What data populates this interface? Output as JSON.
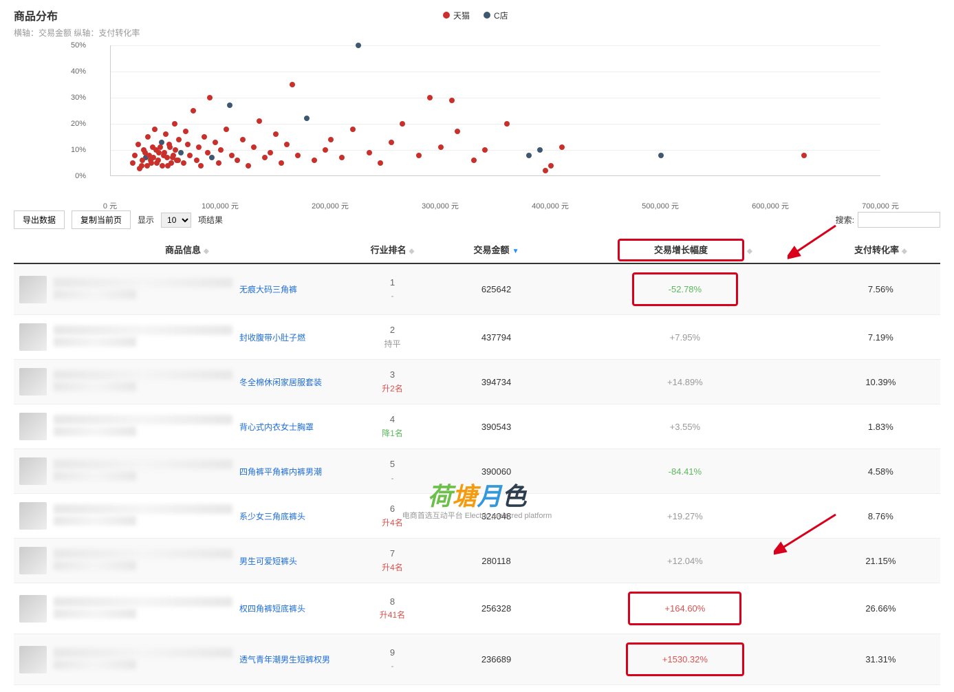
{
  "chart": {
    "title": "商品分布",
    "axis_desc": "横轴：交易金额 纵轴：支付转化率",
    "legend": [
      {
        "label": "天猫",
        "color": "#c9302c"
      },
      {
        "label": "C店",
        "color": "#3e5871"
      }
    ],
    "colors": {
      "tmall": "#c9302c",
      "cstore": "#3e5871",
      "grid": "#eeeeee",
      "axis": "#cccccc"
    },
    "xlim": [
      0,
      700000
    ],
    "ylim": [
      0,
      50
    ],
    "x_ticks": [
      "0 元",
      "100,000 元",
      "200,000 元",
      "300,000 元",
      "400,000 元",
      "500,000 元",
      "600,000 元",
      "700,000 元"
    ],
    "y_ticks": [
      "0%",
      "10%",
      "20%",
      "30%",
      "40%",
      "50%"
    ],
    "points": [
      {
        "x": 20000,
        "y": 5,
        "s": "t"
      },
      {
        "x": 22000,
        "y": 8,
        "s": "t"
      },
      {
        "x": 25000,
        "y": 12,
        "s": "t"
      },
      {
        "x": 28000,
        "y": 4,
        "s": "t"
      },
      {
        "x": 30000,
        "y": 10,
        "s": "t"
      },
      {
        "x": 32000,
        "y": 7,
        "s": "c"
      },
      {
        "x": 34000,
        "y": 15,
        "s": "t"
      },
      {
        "x": 36000,
        "y": 6,
        "s": "t"
      },
      {
        "x": 38000,
        "y": 11,
        "s": "t"
      },
      {
        "x": 40000,
        "y": 18,
        "s": "t"
      },
      {
        "x": 42000,
        "y": 5,
        "s": "t"
      },
      {
        "x": 44000,
        "y": 9,
        "s": "t"
      },
      {
        "x": 46000,
        "y": 13,
        "s": "c"
      },
      {
        "x": 48000,
        "y": 8,
        "s": "t"
      },
      {
        "x": 50000,
        "y": 16,
        "s": "t"
      },
      {
        "x": 52000,
        "y": 4,
        "s": "t"
      },
      {
        "x": 54000,
        "y": 11,
        "s": "t"
      },
      {
        "x": 56000,
        "y": 7,
        "s": "t"
      },
      {
        "x": 58000,
        "y": 20,
        "s": "t"
      },
      {
        "x": 60000,
        "y": 6,
        "s": "t"
      },
      {
        "x": 62000,
        "y": 14,
        "s": "t"
      },
      {
        "x": 64000,
        "y": 9,
        "s": "c"
      },
      {
        "x": 66000,
        "y": 5,
        "s": "t"
      },
      {
        "x": 68000,
        "y": 17,
        "s": "t"
      },
      {
        "x": 70000,
        "y": 12,
        "s": "t"
      },
      {
        "x": 72000,
        "y": 8,
        "s": "t"
      },
      {
        "x": 75000,
        "y": 25,
        "s": "t"
      },
      {
        "x": 78000,
        "y": 6,
        "s": "t"
      },
      {
        "x": 80000,
        "y": 11,
        "s": "t"
      },
      {
        "x": 82000,
        "y": 4,
        "s": "t"
      },
      {
        "x": 85000,
        "y": 15,
        "s": "t"
      },
      {
        "x": 88000,
        "y": 9,
        "s": "t"
      },
      {
        "x": 90000,
        "y": 30,
        "s": "t"
      },
      {
        "x": 92000,
        "y": 7,
        "s": "c"
      },
      {
        "x": 95000,
        "y": 13,
        "s": "t"
      },
      {
        "x": 98000,
        "y": 5,
        "s": "t"
      },
      {
        "x": 100000,
        "y": 10,
        "s": "t"
      },
      {
        "x": 105000,
        "y": 18,
        "s": "t"
      },
      {
        "x": 108000,
        "y": 27,
        "s": "c"
      },
      {
        "x": 110000,
        "y": 8,
        "s": "t"
      },
      {
        "x": 115000,
        "y": 6,
        "s": "t"
      },
      {
        "x": 120000,
        "y": 14,
        "s": "t"
      },
      {
        "x": 125000,
        "y": 4,
        "s": "t"
      },
      {
        "x": 130000,
        "y": 11,
        "s": "t"
      },
      {
        "x": 135000,
        "y": 21,
        "s": "t"
      },
      {
        "x": 140000,
        "y": 7,
        "s": "t"
      },
      {
        "x": 145000,
        "y": 9,
        "s": "t"
      },
      {
        "x": 150000,
        "y": 16,
        "s": "t"
      },
      {
        "x": 155000,
        "y": 5,
        "s": "t"
      },
      {
        "x": 160000,
        "y": 12,
        "s": "t"
      },
      {
        "x": 165000,
        "y": 35,
        "s": "t"
      },
      {
        "x": 170000,
        "y": 8,
        "s": "t"
      },
      {
        "x": 178000,
        "y": 22,
        "s": "c"
      },
      {
        "x": 185000,
        "y": 6,
        "s": "t"
      },
      {
        "x": 195000,
        "y": 10,
        "s": "t"
      },
      {
        "x": 200000,
        "y": 14,
        "s": "t"
      },
      {
        "x": 210000,
        "y": 7,
        "s": "t"
      },
      {
        "x": 220000,
        "y": 18,
        "s": "t"
      },
      {
        "x": 225000,
        "y": 50,
        "s": "c"
      },
      {
        "x": 235000,
        "y": 9,
        "s": "t"
      },
      {
        "x": 245000,
        "y": 5,
        "s": "t"
      },
      {
        "x": 255000,
        "y": 13,
        "s": "t"
      },
      {
        "x": 265000,
        "y": 20,
        "s": "t"
      },
      {
        "x": 280000,
        "y": 8,
        "s": "t"
      },
      {
        "x": 290000,
        "y": 30,
        "s": "t"
      },
      {
        "x": 300000,
        "y": 11,
        "s": "t"
      },
      {
        "x": 310000,
        "y": 29,
        "s": "t"
      },
      {
        "x": 315000,
        "y": 17,
        "s": "t"
      },
      {
        "x": 330000,
        "y": 6,
        "s": "t"
      },
      {
        "x": 340000,
        "y": 10,
        "s": "t"
      },
      {
        "x": 360000,
        "y": 20,
        "s": "t"
      },
      {
        "x": 380000,
        "y": 8,
        "s": "c"
      },
      {
        "x": 390000,
        "y": 10,
        "s": "c"
      },
      {
        "x": 395000,
        "y": 2,
        "s": "t"
      },
      {
        "x": 400000,
        "y": 4,
        "s": "t"
      },
      {
        "x": 410000,
        "y": 11,
        "s": "t"
      },
      {
        "x": 500000,
        "y": 8,
        "s": "c"
      },
      {
        "x": 630000,
        "y": 8,
        "s": "t"
      },
      {
        "x": 26000,
        "y": 3,
        "s": "t"
      },
      {
        "x": 29000,
        "y": 6,
        "s": "t"
      },
      {
        "x": 31000,
        "y": 9,
        "s": "t"
      },
      {
        "x": 33000,
        "y": 4,
        "s": "t"
      },
      {
        "x": 35000,
        "y": 8,
        "s": "t"
      },
      {
        "x": 37000,
        "y": 5,
        "s": "t"
      },
      {
        "x": 39000,
        "y": 7,
        "s": "t"
      },
      {
        "x": 41000,
        "y": 10,
        "s": "t"
      },
      {
        "x": 43000,
        "y": 6,
        "s": "t"
      },
      {
        "x": 45000,
        "y": 11,
        "s": "t"
      },
      {
        "x": 47000,
        "y": 4,
        "s": "t"
      },
      {
        "x": 49000,
        "y": 9,
        "s": "t"
      },
      {
        "x": 51000,
        "y": 7,
        "s": "t"
      },
      {
        "x": 53000,
        "y": 12,
        "s": "t"
      },
      {
        "x": 55000,
        "y": 5,
        "s": "t"
      },
      {
        "x": 57000,
        "y": 8,
        "s": "t"
      },
      {
        "x": 59000,
        "y": 10,
        "s": "t"
      },
      {
        "x": 61000,
        "y": 6,
        "s": "t"
      }
    ]
  },
  "toolbar": {
    "export_label": "导出数据",
    "copy_label": "复制当前页",
    "show_label": "显示",
    "page_size_value": "10",
    "results_label": "项结果",
    "search_label": "搜索:"
  },
  "table": {
    "columns": [
      {
        "label": "商品信息",
        "sortable": true
      },
      {
        "label": "行业排名",
        "sortable": true
      },
      {
        "label": "交易金额",
        "sortable": true,
        "sorted": "desc"
      },
      {
        "label": "交易增长幅度",
        "sortable": true,
        "highlighted": true
      },
      {
        "label": "支付转化率",
        "sortable": true
      }
    ],
    "rows": [
      {
        "name": "无痕大码三角裤",
        "rank": "1",
        "rank_change": "-",
        "rank_class": "rank-flat",
        "amount": "625642",
        "growth": "-52.78%",
        "growth_class": "growth-neg",
        "growth_boxed": true,
        "conv": "7.56%"
      },
      {
        "name": "封收腹带小肚子燃",
        "rank": "2",
        "rank_change": "持平",
        "rank_class": "rank-flat",
        "amount": "437794",
        "growth": "+7.95%",
        "growth_class": "growth-pos",
        "conv": "7.19%"
      },
      {
        "name": "冬全棉休闲家居服套装",
        "rank": "3",
        "rank_change": "升2名",
        "rank_class": "rank-up",
        "amount": "394734",
        "growth": "+14.89%",
        "growth_class": "growth-pos",
        "conv": "10.39%"
      },
      {
        "name": "背心式内衣女士胸罩",
        "rank": "4",
        "rank_change": "降1名",
        "rank_class": "rank-down",
        "amount": "390543",
        "growth": "+3.55%",
        "growth_class": "growth-pos",
        "conv": "1.83%"
      },
      {
        "name": "四角裤平角裤内裤男潮",
        "rank": "5",
        "rank_change": "-",
        "rank_class": "rank-flat",
        "amount": "390060",
        "growth": "-84.41%",
        "growth_class": "growth-neg",
        "conv": "4.58%"
      },
      {
        "name": "系少女三角底裤头",
        "rank": "6",
        "rank_change": "升4名",
        "rank_class": "rank-up",
        "amount": "324048",
        "growth": "+19.27%",
        "growth_class": "growth-pos",
        "conv": "8.76%"
      },
      {
        "name": "男生可爱短裤头",
        "rank": "7",
        "rank_change": "升4名",
        "rank_class": "rank-up",
        "amount": "280118",
        "growth": "+12.04%",
        "growth_class": "growth-pos",
        "conv": "21.15%"
      },
      {
        "name": "权四角裤短底裤头",
        "rank": "8",
        "rank_change": "升41名",
        "rank_class": "rank-up",
        "amount": "256328",
        "growth": "+164.60%",
        "growth_class": "growth-big",
        "growth_boxed": true,
        "conv": "26.66%"
      },
      {
        "name": "透气青年潮男生短裤权男",
        "rank": "9",
        "rank_change": "-",
        "rank_class": "rank-flat",
        "amount": "236689",
        "growth": "+1530.32%",
        "growth_class": "growth-big",
        "growth_boxed": true,
        "conv": "31.31%"
      }
    ]
  },
  "watermark": {
    "text_parts": [
      {
        "t": "荷",
        "c": "wm-c1"
      },
      {
        "t": "塘",
        "c": "wm-c2"
      },
      {
        "t": "月",
        "c": "wm-c3"
      },
      {
        "t": "色",
        "c": "wm-c4"
      }
    ],
    "sub": "电商首选互动平台 Electric preferred platform"
  },
  "colors": {
    "highlight_border": "#d9001b",
    "arrow": "#d9001b",
    "link": "#1e6dd9"
  }
}
